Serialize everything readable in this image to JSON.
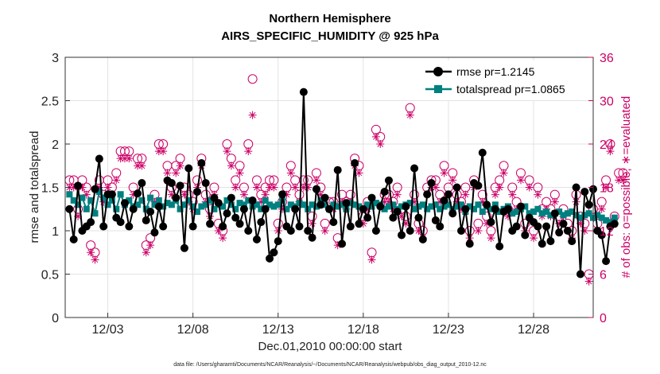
{
  "chart_data": {
    "type": "line",
    "title": "Northern Hemisphere",
    "subtitle": "AIRS_SPECIFIC_HUMIDITY @ 925 hPa",
    "xlabel": "Dec.01,2010 00:00:00 start",
    "ylabel": "rmse and totalspread",
    "ylabel_right": "# of obs: o=possible; ∗=evaluated",
    "footer": "data file: /Users/gharamti/Documents/NCAR/Reanalysis/~/Documents/NCAR/Reanalysis/webpub/obs_diag_output_2010-12.nc",
    "xlim": [
      0.5,
      31.5
    ],
    "ylim": [
      0,
      3
    ],
    "ylim_right": [
      0,
      36
    ],
    "xticks": [
      {
        "x": 3,
        "label": "12/03"
      },
      {
        "x": 8,
        "label": "12/08"
      },
      {
        "x": 13,
        "label": "12/13"
      },
      {
        "x": 18,
        "label": "12/18"
      },
      {
        "x": 23,
        "label": "12/23"
      },
      {
        "x": 28,
        "label": "12/28"
      }
    ],
    "yticks": [
      "0",
      "0.5",
      "1",
      "1.5",
      "2",
      "2.5",
      "3"
    ],
    "yticks_right": [
      "0",
      "6",
      "12",
      "18",
      "24",
      "30",
      "36"
    ],
    "t_start": 0.75,
    "t_step": 0.25,
    "series": [
      {
        "name": "rmse pr=1.2145",
        "color": "#000000",
        "marker": "circle",
        "values": [
          1.25,
          0.9,
          1.52,
          1.0,
          1.05,
          1.1,
          1.48,
          1.83,
          1.05,
          1.42,
          1.42,
          1.15,
          1.1,
          1.32,
          1.05,
          1.25,
          1.43,
          1.55,
          1.12,
          1.22,
          0.98,
          1.28,
          1.05,
          1.58,
          1.55,
          1.38,
          1.52,
          0.8,
          1.72,
          1.05,
          1.45,
          1.78,
          1.55,
          1.08,
          1.38,
          1.32,
          1.05,
          1.2,
          1.38,
          1.15,
          1.08,
          1.25,
          1.0,
          1.35,
          0.9,
          1.1,
          1.25,
          0.68,
          0.75,
          0.88,
          1.42,
          1.05,
          1.0,
          1.25,
          1.05,
          2.6,
          1.0,
          0.92,
          1.48,
          1.3,
          1.38,
          1.25,
          1.1,
          1.7,
          0.85,
          1.32,
          1.05,
          1.78,
          1.08,
          1.25,
          1.15,
          1.38,
          1.0,
          1.28,
          1.45,
          1.58,
          1.15,
          1.22,
          0.95,
          1.28,
          1.0,
          1.72,
          1.15,
          0.9,
          1.42,
          1.55,
          1.12,
          1.05,
          1.35,
          1.42,
          1.2,
          1.5,
          1.0,
          1.25,
          0.85,
          1.55,
          1.52,
          1.9,
          1.3,
          1.1,
          1.25,
          0.82,
          1.22,
          1.25,
          1.0,
          1.05,
          1.28,
          0.95,
          1.15,
          1.1,
          1.05,
          0.85,
          1.05,
          0.88,
          1.2,
          0.98,
          1.08,
          1.0,
          0.88,
          1.5,
          0.5,
          1.45,
          1.3,
          1.48,
          1.0,
          0.95,
          0.65,
          1.05,
          1.08
        ]
      },
      {
        "name": "totalspread pr=1.0865",
        "color": "#008080",
        "marker": "square",
        "values": [
          1.42,
          1.35,
          1.3,
          1.38,
          1.25,
          1.35,
          1.2,
          1.45,
          1.38,
          1.3,
          1.35,
          1.25,
          1.42,
          1.3,
          1.35,
          1.28,
          1.3,
          1.35,
          1.25,
          1.38,
          1.3,
          1.35,
          1.28,
          1.32,
          1.3,
          1.35,
          1.25,
          1.3,
          1.35,
          1.28,
          1.22,
          1.28,
          1.3,
          1.35,
          1.25,
          1.3,
          1.28,
          1.35,
          1.3,
          1.25,
          1.32,
          1.3,
          1.35,
          1.28,
          1.3,
          1.25,
          1.35,
          1.3,
          1.28,
          1.3,
          1.35,
          1.25,
          1.3,
          1.28,
          1.32,
          1.3,
          1.25,
          1.3,
          1.28,
          1.35,
          1.3,
          1.25,
          1.3,
          1.28,
          1.3,
          1.25,
          1.32,
          1.3,
          1.28,
          1.25,
          1.3,
          1.28,
          1.32,
          1.3,
          1.25,
          1.28,
          1.3,
          1.25,
          1.28,
          1.3,
          1.32,
          1.25,
          1.28,
          1.3,
          1.25,
          1.28,
          1.3,
          1.25,
          1.28,
          1.3,
          1.25,
          1.28,
          1.3,
          1.22,
          1.28,
          1.25,
          1.3,
          1.22,
          1.28,
          1.25,
          1.3,
          1.22,
          1.25,
          1.28,
          1.2,
          1.22,
          1.25,
          1.28,
          1.2,
          1.22,
          1.25,
          1.2,
          1.22,
          1.18,
          1.2,
          1.22,
          1.18,
          1.2,
          1.22,
          1.18,
          1.15,
          1.18,
          1.2,
          1.15,
          1.18,
          1.15,
          1.12,
          1.1,
          1.15
        ]
      },
      {
        "name": "# obs possible",
        "axis": "right",
        "color": "#cc0066",
        "marker": "circle-open",
        "values": [
          19,
          19,
          15,
          19,
          18,
          10,
          9,
          19,
          17,
          19,
          18,
          20,
          23,
          23,
          23,
          18,
          22,
          22,
          10,
          11,
          17,
          24,
          24,
          21,
          18,
          21,
          22,
          18,
          17,
          16,
          19,
          22,
          17,
          15,
          18,
          13,
          12,
          24,
          22,
          19,
          21,
          18,
          24,
          33,
          19,
          17,
          18,
          19,
          19,
          13,
          16,
          18,
          21,
          19,
          17,
          19,
          19,
          14,
          20,
          18,
          13,
          16,
          16,
          11,
          17,
          16,
          17,
          22,
          21,
          14,
          16,
          9,
          26,
          25,
          17,
          17,
          16,
          18,
          15,
          14,
          29,
          17,
          13,
          12,
          18,
          19,
          19,
          17,
          21,
          18,
          20,
          17,
          16,
          18,
          12,
          19,
          13,
          17,
          14,
          12,
          18,
          19,
          21,
          15,
          18,
          16,
          20,
          13,
          19,
          12,
          18,
          15,
          16,
          15,
          17,
          14,
          15,
          13,
          12,
          17,
          14,
          13,
          6,
          15,
          13,
          16,
          19,
          24,
          14,
          20,
          20
        ]
      },
      {
        "name": "# obs evaluated",
        "axis": "right",
        "color": "#cc0066",
        "marker": "asterisk",
        "values": [
          18,
          18,
          14,
          18,
          17,
          9,
          8,
          18,
          16,
          18,
          17,
          19,
          22,
          22,
          22,
          17,
          21,
          21,
          9,
          10,
          16,
          23,
          23,
          20,
          17,
          20,
          21,
          17,
          16,
          15,
          18,
          21,
          16,
          14,
          17,
          12,
          11,
          23,
          21,
          18,
          20,
          17,
          23,
          28,
          18,
          16,
          17,
          18,
          18,
          12,
          15,
          17,
          20,
          18,
          16,
          18,
          18,
          13,
          19,
          17,
          12,
          15,
          15,
          10,
          16,
          15,
          16,
          21,
          20,
          13,
          15,
          8,
          25,
          24,
          16,
          16,
          15,
          17,
          14,
          13,
          28,
          16,
          12,
          11,
          17,
          18,
          18,
          16,
          20,
          17,
          19,
          16,
          15,
          17,
          11,
          18,
          12,
          16,
          13,
          11,
          17,
          18,
          20,
          14,
          17,
          15,
          19,
          12,
          18,
          11,
          17,
          14,
          15,
          14,
          16,
          13,
          14,
          12,
          11,
          16,
          13,
          12,
          5,
          14,
          12,
          15,
          18,
          23,
          13,
          19,
          19
        ]
      }
    ]
  }
}
